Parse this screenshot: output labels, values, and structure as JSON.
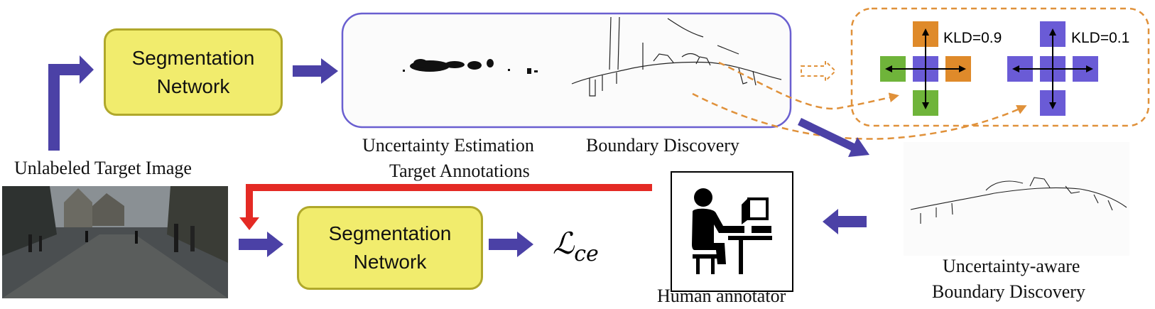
{
  "top_network": {
    "label_line1": "Segmentation",
    "label_line2": "Network"
  },
  "bottom_network": {
    "label_line1": "Segmentation",
    "label_line2": "Network"
  },
  "captions": {
    "unlabeled_target_image": "Unlabeled Target Image",
    "uncertainty_estimation": "Uncertainty Estimation",
    "target_annotations": "Target Annotations",
    "boundary_discovery": "Boundary Discovery",
    "uncertainty_aware_line1": "Uncertainty-aware",
    "uncertainty_aware_line2": "Boundary Discovery",
    "human_annotator": "Human annotator"
  },
  "kld": {
    "left": "KLD=0.9",
    "right": "KLD=0.1"
  },
  "loss_symbol": "ℒ",
  "loss_subscript": "ce",
  "colors": {
    "arrow_blue": "#4b41a6",
    "box_yellow": "#f1ec6d",
    "panel_border": "#6a5fd0",
    "dashed_orange": "#e0913a",
    "red_feedback": "#e42a24",
    "square_orange": "#df8a2a",
    "square_green": "#6fb43a",
    "square_purple": "#6a5bd6"
  }
}
